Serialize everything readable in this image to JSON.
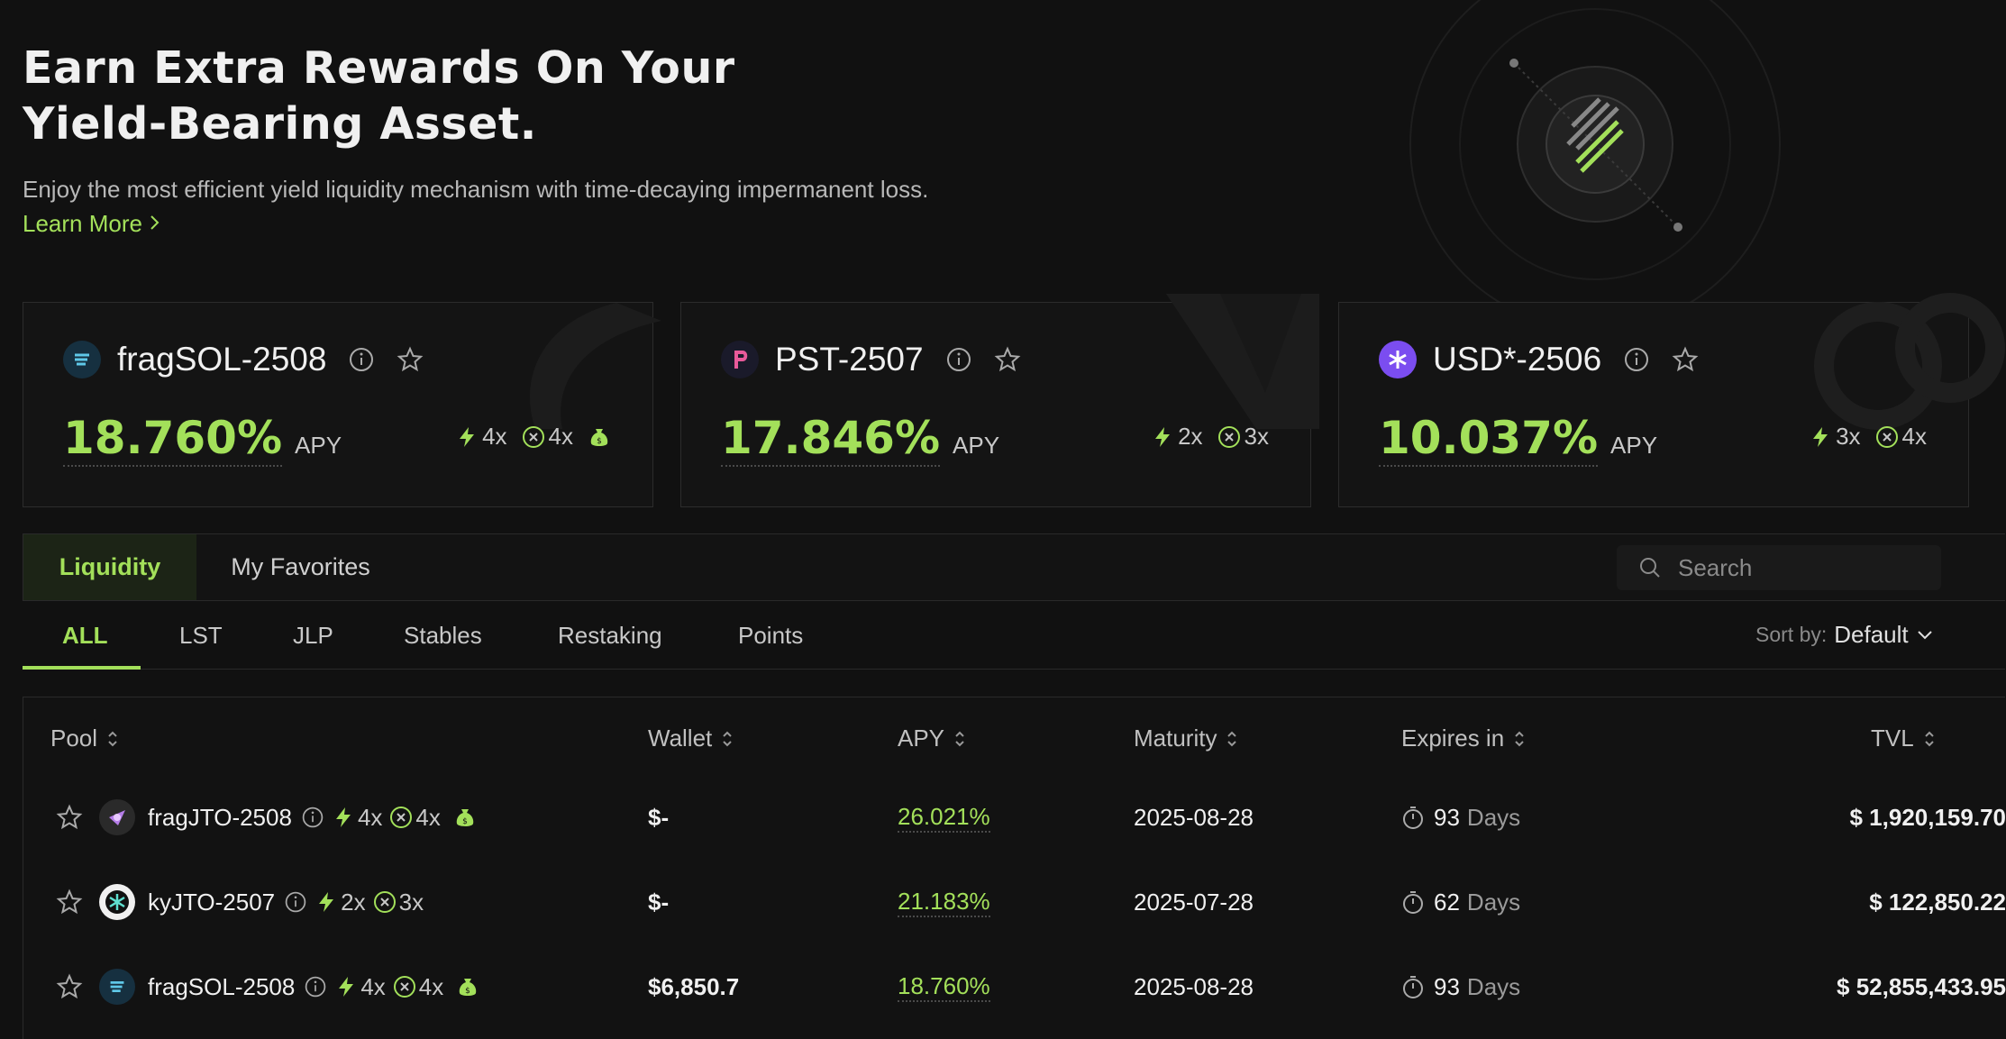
{
  "hero": {
    "title": "Earn Extra Rewards On Your Yield-Bearing Asset.",
    "subtitle": "Enjoy the most efficient yield liquidity mechanism with time-decaying impermanent loss.",
    "learn_more": "Learn More"
  },
  "featured": [
    {
      "name": "fragSOL-2508",
      "apy": "18.760%",
      "apy_label": "APY",
      "boost1": "4x",
      "boost2": "4x",
      "has_bag": true,
      "icon_color": "#2a6f8a"
    },
    {
      "name": "PST-2507",
      "apy": "17.846%",
      "apy_label": "APY",
      "boost1": "2x",
      "boost2": "3x",
      "has_bag": false,
      "icon_color": "#1a1a2e"
    },
    {
      "name": "USD*-2506",
      "apy": "10.037%",
      "apy_label": "APY",
      "boost1": "3x",
      "boost2": "4x",
      "has_bag": false,
      "icon_color": "#7b4df0"
    }
  ],
  "tabs": {
    "liquidity": "Liquidity",
    "favorites": "My Favorites"
  },
  "search": {
    "placeholder": "Search"
  },
  "filters": [
    "ALL",
    "LST",
    "JLP",
    "Stables",
    "Restaking",
    "Points"
  ],
  "sort": {
    "label": "Sort by:",
    "value": "Default"
  },
  "table": {
    "headers": {
      "pool": "Pool",
      "wallet": "Wallet",
      "apy": "APY",
      "maturity": "Maturity",
      "expires": "Expires in",
      "tvl": "TVL"
    },
    "rows": [
      {
        "name": "fragJTO-2508",
        "boost1": "4x",
        "boost2": "4x",
        "has_bag": true,
        "wallet": "$-",
        "apy": "26.021%",
        "maturity": "2025-08-28",
        "days": "93",
        "days_label": "Days",
        "tvl": "$ 1,920,159.70"
      },
      {
        "name": "kyJTO-2507",
        "boost1": "2x",
        "boost2": "3x",
        "has_bag": false,
        "wallet": "$-",
        "apy": "21.183%",
        "maturity": "2025-07-28",
        "days": "62",
        "days_label": "Days",
        "tvl": "$ 122,850.22"
      },
      {
        "name": "fragSOL-2508",
        "boost1": "4x",
        "boost2": "4x",
        "has_bag": true,
        "wallet": "$6,850.7",
        "apy": "18.760%",
        "maturity": "2025-08-28",
        "days": "93",
        "days_label": "Days",
        "tvl": "$ 52,855,433.95"
      }
    ]
  },
  "colors": {
    "accent": "#a3e05a",
    "background": "#111111"
  }
}
